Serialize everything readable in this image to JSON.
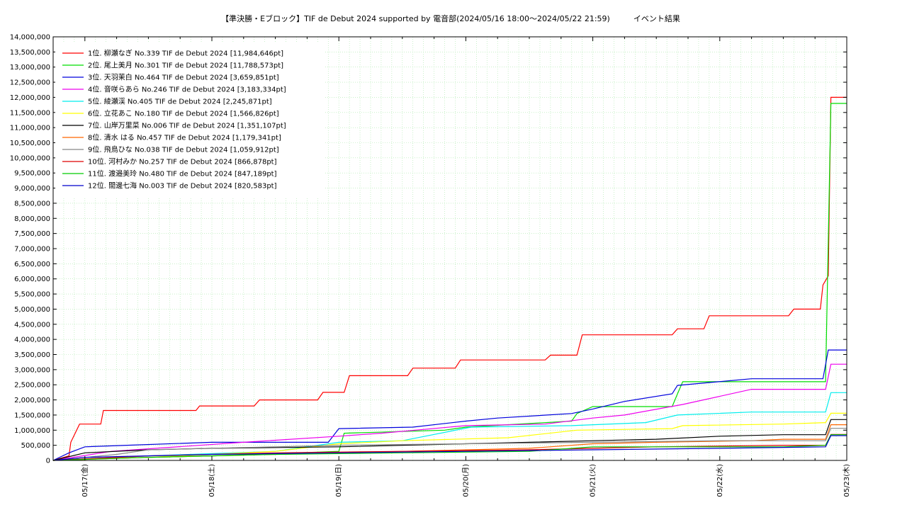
{
  "chart_data": {
    "type": "line",
    "title": "【準決勝・Eブロック】TIF de Debut 2024 supported by 電音部(2024/05/16 18:00〜2024/05/22 21:59)　　　イベント結果",
    "xlabel": "",
    "ylabel": "",
    "ylim": [
      0,
      14000000
    ],
    "xlim": [
      "2024-05-16 18:00",
      "2024-05-23 00:00"
    ],
    "grid": true,
    "legend_position": "top-left",
    "x_ticks": [
      "05/17(金)",
      "05/18(土)",
      "05/19(日)",
      "05/20(月)",
      "05/21(火)",
      "05/22(水)",
      "05/23(木)"
    ],
    "y_ticks": [
      "0",
      "500,000",
      "1,000,000",
      "1,500,000",
      "2,000,000",
      "2,500,000",
      "3,000,000",
      "3,500,000",
      "4,000,000",
      "4,500,000",
      "5,000,000",
      "5,500,000",
      "6,000,000",
      "6,500,000",
      "7,000,000",
      "7,500,000",
      "8,000,000",
      "8,500,000",
      "9,000,000",
      "9,500,000",
      "10,000,000",
      "10,500,000",
      "11,000,000",
      "11,500,000",
      "12,000,000",
      "12,500,000",
      "13,000,000",
      "13,500,000",
      "14,000,000"
    ],
    "series": [
      {
        "name": "1位. 柳瀬なぎ No.339 TIF de Debut 2024 [11,984,646pt]",
        "color": "#ff0000",
        "points": [
          [
            "2024-05-16 18:00",
            0
          ],
          [
            "2024-05-16 21:00",
            150000
          ],
          [
            "2024-05-16 21:20",
            600000
          ],
          [
            "2024-05-16 23:00",
            1200000
          ],
          [
            "2024-05-17 03:00",
            1200000
          ],
          [
            "2024-05-17 03:30",
            1650000
          ],
          [
            "2024-05-17 21:00",
            1650000
          ],
          [
            "2024-05-17 21:40",
            1800000
          ],
          [
            "2024-05-18 08:00",
            1800000
          ],
          [
            "2024-05-18 09:00",
            2000000
          ],
          [
            "2024-05-18 20:00",
            2000000
          ],
          [
            "2024-05-18 21:00",
            2250000
          ],
          [
            "2024-05-19 01:00",
            2250000
          ],
          [
            "2024-05-19 02:00",
            2800000
          ],
          [
            "2024-05-19 13:00",
            2800000
          ],
          [
            "2024-05-19 14:00",
            3050000
          ],
          [
            "2024-05-19 22:00",
            3050000
          ],
          [
            "2024-05-19 23:00",
            3320000
          ],
          [
            "2024-05-20 15:00",
            3320000
          ],
          [
            "2024-05-20 16:00",
            3480000
          ],
          [
            "2024-05-20 21:00",
            3480000
          ],
          [
            "2024-05-20 22:00",
            4150000
          ],
          [
            "2024-05-21 15:00",
            4150000
          ],
          [
            "2024-05-21 16:00",
            4350000
          ],
          [
            "2024-05-21 21:00",
            4350000
          ],
          [
            "2024-05-21 22:00",
            4780000
          ],
          [
            "2024-05-22 13:00",
            4780000
          ],
          [
            "2024-05-22 14:00",
            5000000
          ],
          [
            "2024-05-22 19:00",
            5000000
          ],
          [
            "2024-05-22 19:30",
            5800000
          ],
          [
            "2024-05-22 20:30",
            6100000
          ],
          [
            "2024-05-22 21:00",
            12000000
          ],
          [
            "2024-05-23 00:00",
            12000000
          ]
        ]
      },
      {
        "name": "2位. 尾上美月 No.301 TIF de Debut 2024 [11,788,573pt]",
        "color": "#00dd00",
        "points": [
          [
            "2024-05-16 18:00",
            0
          ],
          [
            "2024-05-17 00:00",
            50000
          ],
          [
            "2024-05-18 00:00",
            150000
          ],
          [
            "2024-05-19 00:00",
            300000
          ],
          [
            "2024-05-19 01:00",
            900000
          ],
          [
            "2024-05-19 20:00",
            1000000
          ],
          [
            "2024-05-20 00:00",
            1100000
          ],
          [
            "2024-05-20 20:00",
            1300000
          ],
          [
            "2024-05-20 21:00",
            1550000
          ],
          [
            "2024-05-21 00:00",
            1780000
          ],
          [
            "2024-05-21 15:00",
            1780000
          ],
          [
            "2024-05-21 16:00",
            2200000
          ],
          [
            "2024-05-21 17:00",
            2600000
          ],
          [
            "2024-05-22 20:00",
            2600000
          ],
          [
            "2024-05-22 21:00",
            11800000
          ],
          [
            "2024-05-23 00:00",
            11800000
          ]
        ]
      },
      {
        "name": "3位. 天羽茉白 No.464 TIF de Debut 2024 [3,659,851pt]",
        "color": "#0000dd",
        "points": [
          [
            "2024-05-16 18:00",
            0
          ],
          [
            "2024-05-16 21:00",
            250000
          ],
          [
            "2024-05-17 00:00",
            450000
          ],
          [
            "2024-05-17 08:00",
            500000
          ],
          [
            "2024-05-18 00:00",
            600000
          ],
          [
            "2024-05-18 22:00",
            600000
          ],
          [
            "2024-05-19 00:00",
            1050000
          ],
          [
            "2024-05-19 14:00",
            1100000
          ],
          [
            "2024-05-20 00:00",
            1300000
          ],
          [
            "2024-05-20 06:00",
            1400000
          ],
          [
            "2024-05-20 20:00",
            1550000
          ],
          [
            "2024-05-21 00:00",
            1700000
          ],
          [
            "2024-05-21 06:00",
            1950000
          ],
          [
            "2024-05-21 15:00",
            2200000
          ],
          [
            "2024-05-21 16:00",
            2480000
          ],
          [
            "2024-05-22 06:00",
            2700000
          ],
          [
            "2024-05-22 19:30",
            2700000
          ],
          [
            "2024-05-22 20:30",
            3650000
          ],
          [
            "2024-05-23 00:00",
            3650000
          ]
        ]
      },
      {
        "name": "4位. 音咲らあら No.246 TIF de Debut 2024 [3,183,334pt]",
        "color": "#ee00ee",
        "points": [
          [
            "2024-05-16 18:00",
            0
          ],
          [
            "2024-05-17 05:00",
            300000
          ],
          [
            "2024-05-18 06:00",
            600000
          ],
          [
            "2024-05-19 00:00",
            800000
          ],
          [
            "2024-05-19 08:00",
            900000
          ],
          [
            "2024-05-20 00:00",
            1150000
          ],
          [
            "2024-05-20 15:00",
            1200000
          ],
          [
            "2024-05-21 00:00",
            1400000
          ],
          [
            "2024-05-21 06:00",
            1500000
          ],
          [
            "2024-05-21 17:00",
            1850000
          ],
          [
            "2024-05-22 06:00",
            2350000
          ],
          [
            "2024-05-22 20:00",
            2350000
          ],
          [
            "2024-05-22 21:00",
            3180000
          ],
          [
            "2024-05-23 00:00",
            3180000
          ]
        ]
      },
      {
        "name": "5位. 綾瀬渓 No.405 TIF de Debut 2024 [2,245,871pt]",
        "color": "#00eeee",
        "points": [
          [
            "2024-05-16 18:00",
            0
          ],
          [
            "2024-05-17 12:00",
            150000
          ],
          [
            "2024-05-18 12:00",
            300000
          ],
          [
            "2024-05-19 00:00",
            600000
          ],
          [
            "2024-05-19 12:00",
            650000
          ],
          [
            "2024-05-20 01:00",
            1100000
          ],
          [
            "2024-05-20 20:00",
            1150000
          ],
          [
            "2024-05-21 10:00",
            1250000
          ],
          [
            "2024-05-21 16:00",
            1500000
          ],
          [
            "2024-05-22 06:00",
            1600000
          ],
          [
            "2024-05-22 20:00",
            1600000
          ],
          [
            "2024-05-22 21:00",
            2240000
          ],
          [
            "2024-05-23 00:00",
            2240000
          ]
        ]
      },
      {
        "name": "6位. 立花あこ No.180 TIF de Debut 2024 [1,566,826pt]",
        "color": "#ffff00",
        "points": [
          [
            "2024-05-16 18:00",
            0
          ],
          [
            "2024-05-17 12:00",
            100000
          ],
          [
            "2024-05-18 12:00",
            300000
          ],
          [
            "2024-05-19 00:00",
            550000
          ],
          [
            "2024-05-19 12:00",
            650000
          ],
          [
            "2024-05-20 08:00",
            750000
          ],
          [
            "2024-05-20 21:00",
            1000000
          ],
          [
            "2024-05-21 15:00",
            1050000
          ],
          [
            "2024-05-21 17:00",
            1150000
          ],
          [
            "2024-05-22 12:00",
            1200000
          ],
          [
            "2024-05-22 20:00",
            1250000
          ],
          [
            "2024-05-22 21:00",
            1560000
          ],
          [
            "2024-05-23 00:00",
            1560000
          ]
        ]
      },
      {
        "name": "7位. 山岸万里菜 No.006 TIF de Debut 2024 [1,351,107pt]",
        "color": "#000000",
        "points": [
          [
            "2024-05-16 18:00",
            0
          ],
          [
            "2024-05-17 00:00",
            250000
          ],
          [
            "2024-05-17 12:00",
            350000
          ],
          [
            "2024-05-18 00:00",
            400000
          ],
          [
            "2024-05-19 00:00",
            450000
          ],
          [
            "2024-05-19 12:00",
            500000
          ],
          [
            "2024-05-20 00:00",
            550000
          ],
          [
            "2024-05-20 12:00",
            600000
          ],
          [
            "2024-05-21 00:00",
            650000
          ],
          [
            "2024-05-21 12:00",
            700000
          ],
          [
            "2024-05-22 00:00",
            800000
          ],
          [
            "2024-05-22 12:00",
            850000
          ],
          [
            "2024-05-22 20:00",
            850000
          ],
          [
            "2024-05-22 21:00",
            1350000
          ],
          [
            "2024-05-23 00:00",
            1350000
          ]
        ]
      },
      {
        "name": "8位. 清水 はる No.457 TIF de Debut 2024 [1,179,341pt]",
        "color": "#ff6600",
        "points": [
          [
            "2024-05-16 18:00",
            0
          ],
          [
            "2024-05-17 12:00",
            100000
          ],
          [
            "2024-05-18 12:00",
            200000
          ],
          [
            "2024-05-19 12:00",
            300000
          ],
          [
            "2024-05-20 12:00",
            400000
          ],
          [
            "2024-05-21 00:00",
            550000
          ],
          [
            "2024-05-21 12:00",
            600000
          ],
          [
            "2024-05-22 06:00",
            650000
          ],
          [
            "2024-05-22 12:00",
            700000
          ],
          [
            "2024-05-22 20:00",
            700000
          ],
          [
            "2024-05-22 21:00",
            1180000
          ],
          [
            "2024-05-23 00:00",
            1180000
          ]
        ]
      },
      {
        "name": "9位. 飛鳥ひな No.038 TIF de Debut 2024 [1,059,912pt]",
        "color": "#888888",
        "points": [
          [
            "2024-05-16 18:00",
            0
          ],
          [
            "2024-05-17 06:00",
            200000
          ],
          [
            "2024-05-17 12:00",
            350000
          ],
          [
            "2024-05-18 00:00",
            400000
          ],
          [
            "2024-05-18 12:00",
            450000
          ],
          [
            "2024-05-19 00:00",
            500000
          ],
          [
            "2024-05-20 00:00",
            550000
          ],
          [
            "2024-05-21 00:00",
            600000
          ],
          [
            "2024-05-22 00:00",
            650000
          ],
          [
            "2024-05-22 20:00",
            650000
          ],
          [
            "2024-05-22 21:00",
            1060000
          ],
          [
            "2024-05-23 00:00",
            1060000
          ]
        ]
      },
      {
        "name": "10位. 河村みか No.257 TIF de Debut 2024 [866,878pt]",
        "color": "#dd0000",
        "points": [
          [
            "2024-05-16 18:00",
            0
          ],
          [
            "2024-05-17 12:00",
            150000
          ],
          [
            "2024-05-18 12:00",
            250000
          ],
          [
            "2024-05-19 12:00",
            300000
          ],
          [
            "2024-05-20 12:00",
            350000
          ],
          [
            "2024-05-21 12:00",
            450000
          ],
          [
            "2024-05-22 12:00",
            500000
          ],
          [
            "2024-05-22 20:00",
            500000
          ],
          [
            "2024-05-22 21:00",
            860000
          ],
          [
            "2024-05-23 00:00",
            860000
          ]
        ]
      },
      {
        "name": "11位. 渡邉美玲 No.480 TIF de Debut 2024 [847,189pt]",
        "color": "#00cc00",
        "points": [
          [
            "2024-05-16 18:00",
            0
          ],
          [
            "2024-05-17 12:00",
            100000
          ],
          [
            "2024-05-18 12:00",
            200000
          ],
          [
            "2024-05-19 12:00",
            250000
          ],
          [
            "2024-05-20 12:00",
            300000
          ],
          [
            "2024-05-21 00:00",
            450000
          ],
          [
            "2024-05-22 12:00",
            450000
          ],
          [
            "2024-05-22 20:00",
            500000
          ],
          [
            "2024-05-22 21:00",
            850000
          ],
          [
            "2024-05-23 00:00",
            850000
          ]
        ]
      },
      {
        "name": "12位. 間邊七海 No.003 TIF de Debut 2024 [820,583pt]",
        "color": "#0000cc",
        "points": [
          [
            "2024-05-16 18:00",
            0
          ],
          [
            "2024-05-17 00:00",
            100000
          ],
          [
            "2024-05-18 00:00",
            200000
          ],
          [
            "2024-05-19 00:00",
            250000
          ],
          [
            "2024-05-20 00:00",
            300000
          ],
          [
            "2024-05-21 00:00",
            350000
          ],
          [
            "2024-05-22 00:00",
            400000
          ],
          [
            "2024-05-22 20:00",
            450000
          ],
          [
            "2024-05-22 21:00",
            820000
          ],
          [
            "2024-05-23 00:00",
            820000
          ]
        ]
      }
    ]
  }
}
